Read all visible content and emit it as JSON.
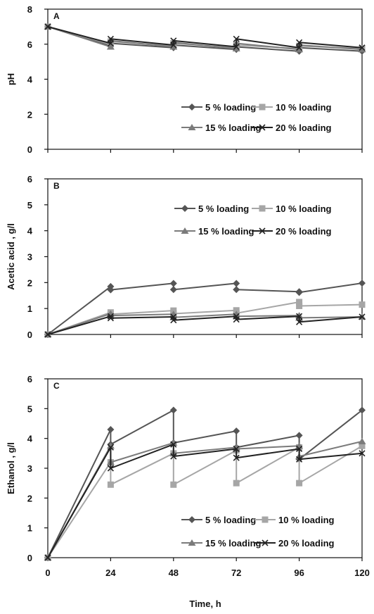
{
  "colors": {
    "s5": "#555555",
    "s10": "#a6a6a6",
    "s15": "#7b7b7b",
    "s20": "#222222"
  },
  "x_axis": {
    "label": "Time, h",
    "ticks": [
      0,
      24,
      48,
      72,
      96,
      120
    ]
  },
  "chart_data": [
    {
      "type": "line",
      "panel": "A",
      "ylabel": "pH",
      "ylim": [
        0,
        8
      ],
      "yticks": [
        0,
        2,
        4,
        6,
        8
      ],
      "xlim": [
        0,
        120
      ],
      "legend_position": "bottom-right",
      "series": [
        {
          "name": "5 % loading",
          "marker": "diamond",
          "x": [
            0,
            24,
            24,
            48,
            48,
            72,
            72,
            96,
            96,
            120
          ],
          "y": [
            7.0,
            5.9,
            6.05,
            5.8,
            5.95,
            5.7,
            5.85,
            5.6,
            5.8,
            5.6
          ]
        },
        {
          "name": "10 % loading",
          "marker": "square",
          "x": [
            0,
            24,
            24,
            48,
            48,
            72,
            72,
            96,
            96,
            120
          ],
          "y": [
            7.0,
            6.0,
            6.15,
            5.9,
            6.05,
            5.8,
            5.95,
            5.75,
            5.9,
            5.75
          ]
        },
        {
          "name": "15 % loading",
          "marker": "triangle",
          "x": [
            0,
            24,
            24,
            48,
            48,
            72,
            72,
            96,
            96,
            120
          ],
          "y": [
            7.0,
            5.85,
            6.2,
            5.85,
            6.1,
            5.75,
            6.05,
            5.7,
            5.95,
            5.7
          ]
        },
        {
          "name": "20 % loading",
          "marker": "x",
          "x": [
            0,
            24,
            24,
            48,
            48,
            72,
            72,
            96,
            96,
            120
          ],
          "y": [
            7.0,
            6.05,
            6.3,
            5.95,
            6.2,
            5.85,
            6.3,
            5.8,
            6.1,
            5.8
          ]
        }
      ]
    },
    {
      "type": "line",
      "panel": "B",
      "ylabel": "Acetic acid , g/l",
      "ylim": [
        0,
        6
      ],
      "yticks": [
        0,
        1,
        2,
        3,
        4,
        5,
        6
      ],
      "xlim": [
        0,
        120
      ],
      "legend_position": "top-right",
      "series": [
        {
          "name": "5 % loading",
          "marker": "diamond",
          "x": [
            0,
            24,
            24,
            48,
            48,
            72,
            72,
            96,
            96,
            120
          ],
          "y": [
            0.0,
            1.85,
            1.72,
            1.97,
            1.73,
            1.97,
            1.73,
            1.65,
            1.62,
            1.98
          ]
        },
        {
          "name": "10 % loading",
          "marker": "square",
          "x": [
            0,
            24,
            24,
            48,
            48,
            72,
            72,
            96,
            96,
            120
          ],
          "y": [
            0.0,
            0.85,
            0.78,
            0.92,
            0.8,
            0.93,
            0.82,
            1.25,
            1.1,
            1.15
          ]
        },
        {
          "name": "15 % loading",
          "marker": "triangle",
          "x": [
            0,
            24,
            24,
            48,
            48,
            72,
            72,
            96,
            96,
            120
          ],
          "y": [
            0.0,
            0.8,
            0.73,
            0.78,
            0.66,
            0.78,
            0.7,
            0.73,
            0.64,
            0.68
          ]
        },
        {
          "name": "20 % loading",
          "marker": "x",
          "x": [
            0,
            24,
            24,
            48,
            48,
            72,
            72,
            96,
            96,
            120
          ],
          "y": [
            0.0,
            0.7,
            0.63,
            0.68,
            0.55,
            0.7,
            0.58,
            0.7,
            0.48,
            0.68
          ]
        }
      ]
    },
    {
      "type": "line",
      "panel": "C",
      "ylabel": "Ethanol , g/l",
      "ylim": [
        0,
        6
      ],
      "yticks": [
        0,
        1,
        2,
        3,
        4,
        5,
        6
      ],
      "xlim": [
        0,
        120
      ],
      "legend_position": "bottom-right",
      "series": [
        {
          "name": "5 % loading",
          "marker": "diamond",
          "x": [
            0,
            24,
            24,
            48,
            48,
            72,
            72,
            96,
            96,
            120
          ],
          "y": [
            0.0,
            4.3,
            3.8,
            4.95,
            3.85,
            4.25,
            3.7,
            4.1,
            3.3,
            4.95
          ]
        },
        {
          "name": "10 % loading",
          "marker": "square",
          "x": [
            0,
            24,
            24,
            48,
            48,
            72,
            72,
            96,
            96,
            120
          ],
          "y": [
            0.0,
            3.2,
            2.45,
            3.5,
            2.45,
            3.6,
            2.5,
            3.7,
            2.5,
            3.75
          ]
        },
        {
          "name": "15 % loading",
          "marker": "triangle",
          "x": [
            0,
            24,
            24,
            48,
            48,
            72,
            72,
            96,
            96,
            120
          ],
          "y": [
            0.0,
            3.75,
            3.2,
            3.85,
            3.5,
            3.7,
            3.65,
            3.75,
            3.4,
            3.9
          ]
        },
        {
          "name": "20 % loading",
          "marker": "x",
          "x": [
            0,
            24,
            24,
            48,
            48,
            72,
            72,
            96,
            96,
            120
          ],
          "y": [
            0.0,
            3.7,
            3.0,
            3.8,
            3.4,
            3.65,
            3.35,
            3.65,
            3.3,
            3.5
          ]
        }
      ]
    }
  ]
}
